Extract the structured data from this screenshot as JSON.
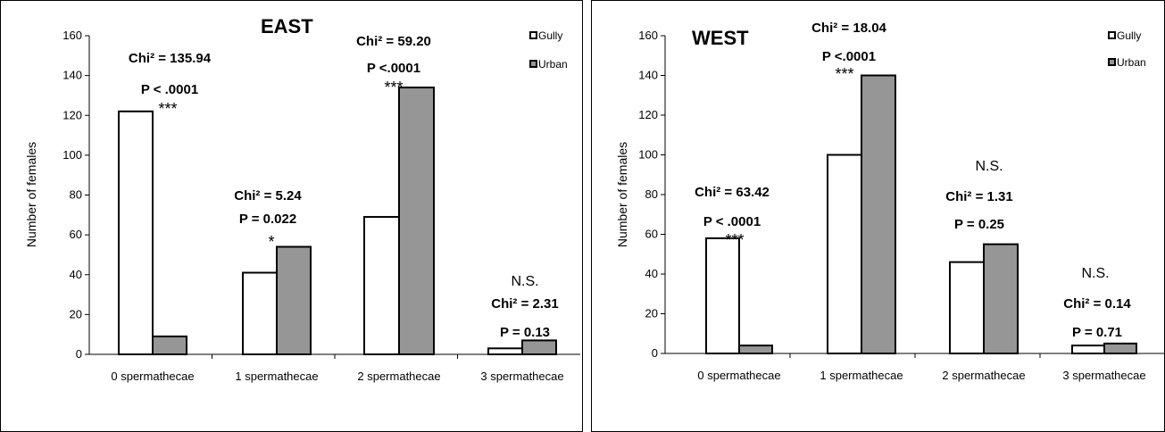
{
  "chart_data": [
    {
      "type": "bar",
      "title": "EAST",
      "ylabel": "Number of females",
      "xlabel": "",
      "ylim": [
        0,
        160
      ],
      "yticks": [
        0,
        20,
        40,
        60,
        80,
        100,
        120,
        140,
        160
      ],
      "categories": [
        "0 spermathecae",
        "1 spermathecae",
        "2 spermathecae",
        "3 spermathecae"
      ],
      "series": [
        {
          "name": "Gully",
          "color": "#ffffff",
          "values": [
            122,
            41,
            69,
            3
          ]
        },
        {
          "name": "Urban",
          "color": "#969696",
          "values": [
            9,
            54,
            134,
            7
          ]
        }
      ],
      "legend_position": "top-right",
      "grid": false,
      "annotations": [
        {
          "chi": "Chi² = 135.94",
          "p": "P < .0001",
          "sig": "***"
        },
        {
          "chi": "Chi² = 5.24",
          "p": "P = 0.022",
          "sig": "*"
        },
        {
          "chi": "Chi² = 59.20",
          "p": "P <.0001",
          "sig": "***"
        },
        {
          "chi": "Chi² = 2.31",
          "p": "P = 0.13",
          "sig": "N.S."
        }
      ]
    },
    {
      "type": "bar",
      "title": "WEST",
      "ylabel": "Number of females",
      "xlabel": "",
      "ylim": [
        0,
        160
      ],
      "yticks": [
        0,
        20,
        40,
        60,
        80,
        100,
        120,
        140,
        160
      ],
      "categories": [
        "0 spermathecae",
        "1 spermathecae",
        "2 spermathecae",
        "3 spermathecae"
      ],
      "series": [
        {
          "name": "Gully",
          "color": "#ffffff",
          "values": [
            58,
            100,
            46,
            4
          ]
        },
        {
          "name": "Urban",
          "color": "#969696",
          "values": [
            4,
            140,
            55,
            5
          ]
        }
      ],
      "legend_position": "top-right",
      "grid": false,
      "annotations": [
        {
          "chi": "Chi² = 63.42",
          "p": "P < .0001",
          "sig": "***"
        },
        {
          "chi": "Chi² = 18.04",
          "p": "P <.0001",
          "sig": "***"
        },
        {
          "chi": "Chi² = 1.31",
          "p": "P = 0.25",
          "sig": "N.S."
        },
        {
          "chi": "Chi² = 0.14",
          "p": "P = 0.71",
          "sig": "N.S."
        }
      ]
    }
  ]
}
